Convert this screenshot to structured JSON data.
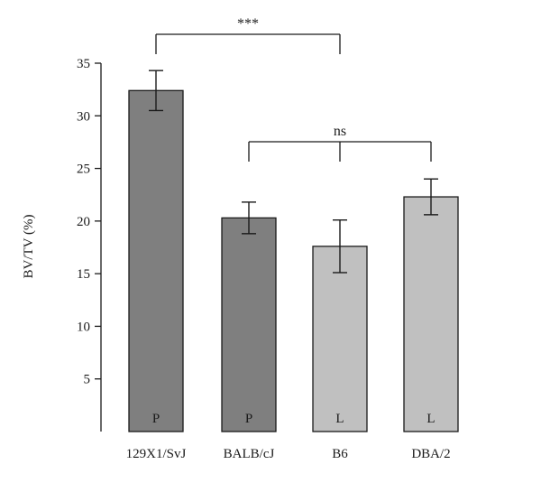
{
  "chart_data": {
    "type": "bar",
    "title": "",
    "xlabel": "",
    "ylabel": "BV/TV (%)",
    "ylim": [
      0,
      35
    ],
    "yticks": [
      5,
      10,
      15,
      20,
      25,
      30,
      35
    ],
    "categories": [
      "129X1/SvJ",
      "BALB/cJ",
      "B6",
      "DBA/2"
    ],
    "values": [
      32.4,
      20.3,
      17.6,
      22.3
    ],
    "errors": [
      1.9,
      1.5,
      2.5,
      1.7
    ],
    "bar_labels": [
      "P",
      "P",
      "L",
      "L"
    ],
    "colors": [
      "#7f7f7f",
      "#7f7f7f",
      "#c0c0c0",
      "#c0c0c0"
    ],
    "grid": false,
    "annotations": [
      {
        "text": "***",
        "from": 0,
        "to": 2,
        "drops": [
          0,
          2
        ]
      },
      {
        "text": "ns",
        "from": 1,
        "to": 3,
        "drops": [
          1,
          2,
          3
        ]
      }
    ]
  }
}
